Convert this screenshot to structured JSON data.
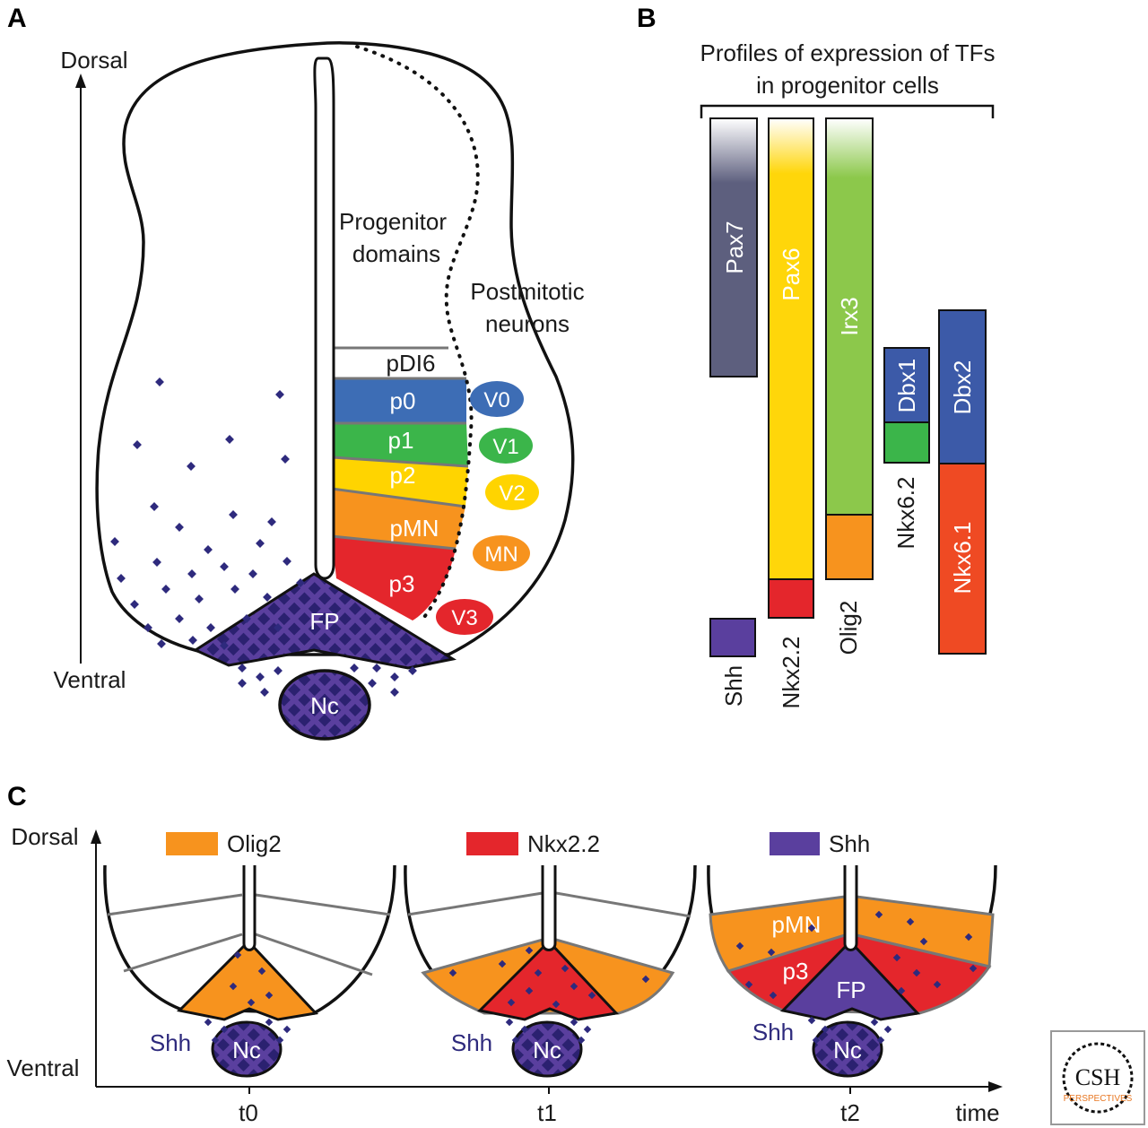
{
  "panels": {
    "a": {
      "letter": "A",
      "axis_top": "Dorsal",
      "axis_bottom": "Ventral",
      "progenitor_label": [
        "Progenitor",
        "domains"
      ],
      "postmitotic_label": [
        "Postmitotic",
        "neurons"
      ],
      "domains": [
        "pDI6",
        "p0",
        "p1",
        "p2",
        "pMN",
        "p3"
      ],
      "floor_plate": "FP",
      "notochord": "Nc",
      "neurons": [
        "V0",
        "V1",
        "V2",
        "MN",
        "V3"
      ]
    },
    "b": {
      "letter": "B",
      "title": [
        "Profiles of expression of TFs",
        "in progenitor cells"
      ],
      "bars": [
        "Pax7",
        "Pax6",
        "Irx3",
        "Dbx1",
        "Dbx2",
        "Nkx6.2",
        "Nkx6.1",
        "Shh",
        "Nkx2.2",
        "Olig2"
      ]
    },
    "c": {
      "letter": "C",
      "axis_top": "Dorsal",
      "axis_bottom": "Ventral",
      "x_axis": "time",
      "legend": [
        "Olig2",
        "Nkx2.2",
        "Shh"
      ],
      "timepoints": [
        "t0",
        "t1",
        "t2"
      ],
      "shh": "Shh",
      "nc": "Nc",
      "t2_labels": [
        "pMN",
        "p3",
        "FP"
      ]
    }
  },
  "logo": {
    "text": "CSH",
    "subtext": "PERSPECTIVES"
  },
  "colors": {
    "pax7": "#5d5f7e",
    "pax6": "#ffd60a",
    "irx3": "#8cc84b",
    "olig2": "#f7931e",
    "nkx22": "#e4262c",
    "dbx": "#3c5aa8",
    "nkx62": "#3bb54a",
    "nkx61": "#ef4a23",
    "shh": "#5a3f9e",
    "p2": "#ffd400",
    "p1": "#3bb54a",
    "p0": "#3d6db5",
    "v0": "#3d6db5",
    "v1": "#3bb54a",
    "v2": "#ffd400",
    "mn": "#f7931e",
    "v3": "#e4262c",
    "dot": "#2e2a7d"
  }
}
